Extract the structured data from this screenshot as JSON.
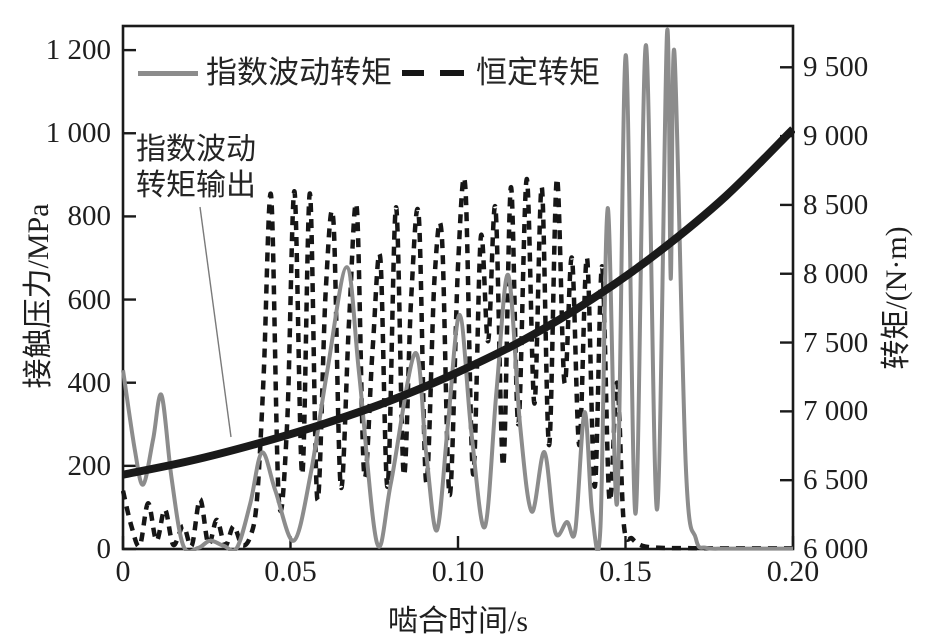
{
  "figure": {
    "background": "#ffffff",
    "colors": {
      "axis": "#1a1a1a",
      "text": "#1e1e1e",
      "leader_line": "#7a7a7a"
    },
    "legend": {
      "items": [
        {
          "label": "指数波动转矩",
          "line_style": "solid",
          "color": "#8c8c8c"
        },
        {
          "label": "恒定转矩",
          "line_style": "dashed",
          "color": "#161616"
        }
      ]
    },
    "annotation": {
      "line1": "指数波动",
      "line2": "转矩输出",
      "points_to": "指数波动转矩输出曲线"
    }
  },
  "chart_data": {
    "type": "line",
    "title": "",
    "grid": false,
    "legend_position": "top-inside",
    "axes": {
      "x": {
        "title": "啮合时间/s",
        "lim": [
          0,
          0.2
        ],
        "ticks": [
          0,
          0.05,
          0.1,
          0.15,
          0.2
        ],
        "tick_labels": [
          "0",
          "0.05",
          "0.10",
          "0.15",
          "0.20"
        ]
      },
      "y_left": {
        "title": "接触压力/MPa",
        "lim": [
          0,
          1258
        ],
        "ticks": [
          0,
          200,
          400,
          600,
          800,
          1000,
          1200
        ],
        "tick_labels": [
          "0",
          "200",
          "400",
          "600",
          "800",
          "1 000",
          "1 200"
        ]
      },
      "y_right": {
        "title": "转矩/(N·m)",
        "lim": [
          6000,
          9800
        ],
        "ticks": [
          6000,
          6500,
          7000,
          7500,
          8000,
          8500,
          9000,
          9500
        ],
        "tick_labels": [
          "6 000",
          "6 500",
          "7 000",
          "7 500",
          "8 000",
          "8 500",
          "9 000",
          "9 500"
        ]
      }
    },
    "series": [
      {
        "name": "指数波动转矩",
        "axis": "left",
        "unit": "MPa",
        "style": "solid",
        "color": "#8c8c8c",
        "width": 4,
        "z": 1,
        "points": [
          [
            0,
            430
          ],
          [
            0.0035,
            240
          ],
          [
            0.006,
            155
          ],
          [
            0.009,
            265
          ],
          [
            0.0115,
            370
          ],
          [
            0.0145,
            170
          ],
          [
            0.018,
            8
          ],
          [
            0.0225,
            3
          ],
          [
            0.026,
            20
          ],
          [
            0.03,
            8
          ],
          [
            0.034,
            3
          ],
          [
            0.038,
            110
          ],
          [
            0.0415,
            232
          ],
          [
            0.0455,
            140
          ],
          [
            0.051,
            20
          ],
          [
            0.056,
            180
          ],
          [
            0.061,
            430
          ],
          [
            0.0668,
            678
          ],
          [
            0.0705,
            420
          ],
          [
            0.0758,
            15
          ],
          [
            0.08,
            160
          ],
          [
            0.0872,
            471
          ],
          [
            0.0905,
            230
          ],
          [
            0.0937,
            45
          ],
          [
            0.097,
            300
          ],
          [
            0.1005,
            563
          ],
          [
            0.104,
            280
          ],
          [
            0.108,
            53
          ],
          [
            0.1115,
            380
          ],
          [
            0.115,
            659
          ],
          [
            0.1185,
            300
          ],
          [
            0.122,
            90
          ],
          [
            0.1258,
            233
          ],
          [
            0.129,
            41
          ],
          [
            0.1325,
            65
          ],
          [
            0.135,
            45
          ],
          [
            0.1378,
            329
          ],
          [
            0.14,
            90
          ],
          [
            0.1425,
            50
          ],
          [
            0.1447,
            820
          ],
          [
            0.1475,
            110
          ],
          [
            0.1501,
            1188
          ],
          [
            0.153,
            85
          ],
          [
            0.1561,
            1212
          ],
          [
            0.1594,
            95
          ],
          [
            0.1624,
            1241
          ],
          [
            0.1635,
            650
          ],
          [
            0.1646,
            1195
          ],
          [
            0.168,
            200
          ],
          [
            0.171,
            25
          ],
          [
            0.174,
            3
          ],
          [
            0.18,
            1
          ],
          [
            0.19,
            1
          ],
          [
            0.2,
            1
          ]
        ]
      },
      {
        "name": "恒定转矩",
        "axis": "left",
        "unit": "MPa",
        "style": "dashed",
        "color": "#161616",
        "width": 4.5,
        "dash": [
          9,
          7
        ],
        "z": 0,
        "points": [
          [
            0,
            140
          ],
          [
            0.0025,
            55
          ],
          [
            0.005,
            8
          ],
          [
            0.0075,
            110
          ],
          [
            0.01,
            20
          ],
          [
            0.0125,
            95
          ],
          [
            0.015,
            10
          ],
          [
            0.018,
            55
          ],
          [
            0.0205,
            8
          ],
          [
            0.023,
            120
          ],
          [
            0.0255,
            12
          ],
          [
            0.028,
            70
          ],
          [
            0.0305,
            8
          ],
          [
            0.033,
            55
          ],
          [
            0.0355,
            10
          ],
          [
            0.038,
            30
          ],
          [
            0.04,
            120
          ],
          [
            0.042,
            420
          ],
          [
            0.0442,
            850
          ],
          [
            0.0465,
            120
          ],
          [
            0.049,
            300
          ],
          [
            0.0512,
            860
          ],
          [
            0.0535,
            180
          ],
          [
            0.0558,
            855
          ],
          [
            0.058,
            120
          ],
          [
            0.0605,
            620
          ],
          [
            0.0628,
            790
          ],
          [
            0.065,
            150
          ],
          [
            0.0675,
            550
          ],
          [
            0.0698,
            820
          ],
          [
            0.072,
            180
          ],
          [
            0.0745,
            480
          ],
          [
            0.0768,
            700
          ],
          [
            0.079,
            150
          ],
          [
            0.0815,
            822
          ],
          [
            0.0838,
            180
          ],
          [
            0.086,
            600
          ],
          [
            0.0883,
            800
          ],
          [
            0.0905,
            160
          ],
          [
            0.093,
            650
          ],
          [
            0.0952,
            750
          ],
          [
            0.0975,
            130
          ],
          [
            0.1,
            680
          ],
          [
            0.1022,
            868
          ],
          [
            0.1045,
            180
          ],
          [
            0.1068,
            750
          ],
          [
            0.109,
            500
          ],
          [
            0.1112,
            820
          ],
          [
            0.1135,
            200
          ],
          [
            0.1158,
            870
          ],
          [
            0.118,
            300
          ],
          [
            0.1205,
            890
          ],
          [
            0.1228,
            350
          ],
          [
            0.125,
            870
          ],
          [
            0.1272,
            250
          ],
          [
            0.1295,
            890
          ],
          [
            0.1318,
            400
          ],
          [
            0.134,
            700
          ],
          [
            0.1362,
            250
          ],
          [
            0.1385,
            700
          ],
          [
            0.1408,
            150
          ],
          [
            0.143,
            680
          ],
          [
            0.1452,
            120
          ],
          [
            0.1475,
            400
          ],
          [
            0.1495,
            60
          ],
          [
            0.152,
            25
          ],
          [
            0.155,
            8
          ],
          [
            0.16,
            3
          ],
          [
            0.17,
            2
          ],
          [
            0.18,
            2
          ],
          [
            0.19,
            2
          ],
          [
            0.2,
            2
          ]
        ]
      },
      {
        "name": "指数波动转矩输出",
        "axis": "right",
        "unit": "N·m",
        "style": "solid",
        "color": "#1a1a1a",
        "width": 8,
        "z": 2,
        "points": [
          [
            0,
            6540
          ],
          [
            0.02,
            6640
          ],
          [
            0.04,
            6765
          ],
          [
            0.06,
            6910
          ],
          [
            0.08,
            7080
          ],
          [
            0.1,
            7285
          ],
          [
            0.12,
            7525
          ],
          [
            0.14,
            7815
          ],
          [
            0.16,
            8160
          ],
          [
            0.18,
            8565
          ],
          [
            0.2,
            9050
          ]
        ]
      }
    ]
  }
}
